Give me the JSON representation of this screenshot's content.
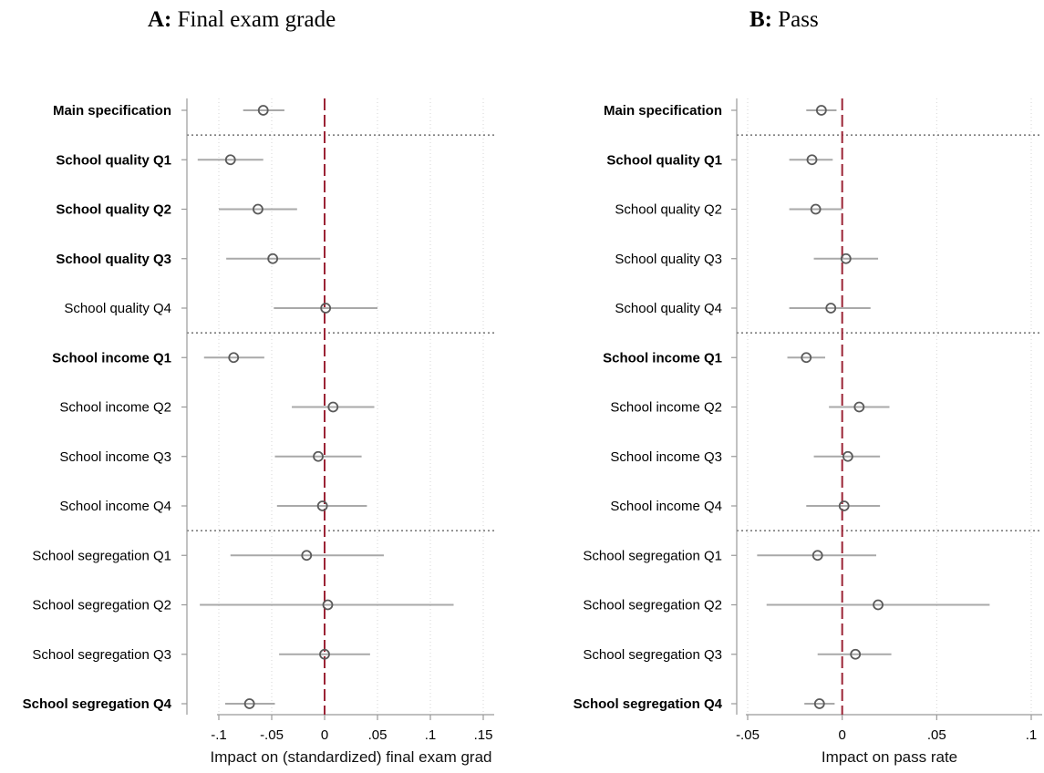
{
  "chart_data": [
    {
      "type": "scatter",
      "panel_label": "A:",
      "title": "Final exam grade",
      "xlabel": "Impact on (standardized) final exam grad",
      "ylabel": "",
      "xlim": [
        -0.1,
        0.15
      ],
      "xticks": [
        -0.1,
        -0.05,
        0,
        0.05,
        0.1,
        0.15
      ],
      "xtick_labels": [
        "-.1",
        "-.05",
        "0",
        ".05",
        ".1",
        ".15"
      ],
      "reference_line": 0,
      "grid": true,
      "categories": [
        "Main specification",
        "School quality Q1",
        "School quality Q2",
        "School quality Q3",
        "School quality Q4",
        "School income Q1",
        "School income Q2",
        "School income Q3",
        "School income Q4",
        "School segregation Q1",
        "School segregation Q2",
        "School segregation Q3",
        "School segregation Q4"
      ],
      "bold": [
        true,
        true,
        true,
        true,
        false,
        true,
        false,
        false,
        false,
        false,
        false,
        false,
        true
      ],
      "group_separators_after": [
        0,
        4,
        8
      ],
      "estimates": [
        -0.058,
        -0.089,
        -0.063,
        -0.049,
        0.001,
        -0.086,
        0.008,
        -0.006,
        -0.002,
        -0.017,
        0.003,
        0.0,
        -0.071
      ],
      "ci_low": [
        -0.077,
        -0.12,
        -0.1,
        -0.093,
        -0.048,
        -0.114,
        -0.031,
        -0.047,
        -0.045,
        -0.089,
        -0.118,
        -0.043,
        -0.094
      ],
      "ci_high": [
        -0.038,
        -0.058,
        -0.026,
        -0.004,
        0.05,
        -0.057,
        0.047,
        0.035,
        0.04,
        0.056,
        0.122,
        0.043,
        -0.047
      ]
    },
    {
      "type": "scatter",
      "panel_label": "B:",
      "title": "Pass",
      "xlabel": "Impact on pass rate",
      "ylabel": "",
      "xlim": [
        -0.05,
        0.1
      ],
      "xticks": [
        -0.05,
        0,
        0.05,
        0.1
      ],
      "xtick_labels": [
        "-.05",
        "0",
        ".05",
        ".1"
      ],
      "reference_line": 0,
      "grid": true,
      "categories": [
        "Main specification",
        "School quality Q1",
        "School quality Q2",
        "School quality Q3",
        "School quality Q4",
        "School income Q1",
        "School income Q2",
        "School income Q3",
        "School income Q4",
        "School segregation Q1",
        "School segregation Q2",
        "School segregation Q3",
        "School segregation Q4"
      ],
      "bold": [
        true,
        true,
        false,
        false,
        false,
        true,
        false,
        false,
        false,
        false,
        false,
        false,
        true
      ],
      "group_separators_after": [
        0,
        4,
        8
      ],
      "estimates": [
        -0.011,
        -0.016,
        -0.014,
        0.002,
        -0.006,
        -0.019,
        0.009,
        0.003,
        0.001,
        -0.013,
        0.019,
        0.007,
        -0.012
      ],
      "ci_low": [
        -0.019,
        -0.028,
        -0.028,
        -0.015,
        -0.028,
        -0.029,
        -0.007,
        -0.015,
        -0.019,
        -0.045,
        -0.04,
        -0.013,
        -0.02
      ],
      "ci_high": [
        -0.003,
        -0.005,
        0.0,
        0.019,
        0.015,
        -0.009,
        0.025,
        0.02,
        0.02,
        0.018,
        0.078,
        0.026,
        -0.004
      ]
    }
  ]
}
